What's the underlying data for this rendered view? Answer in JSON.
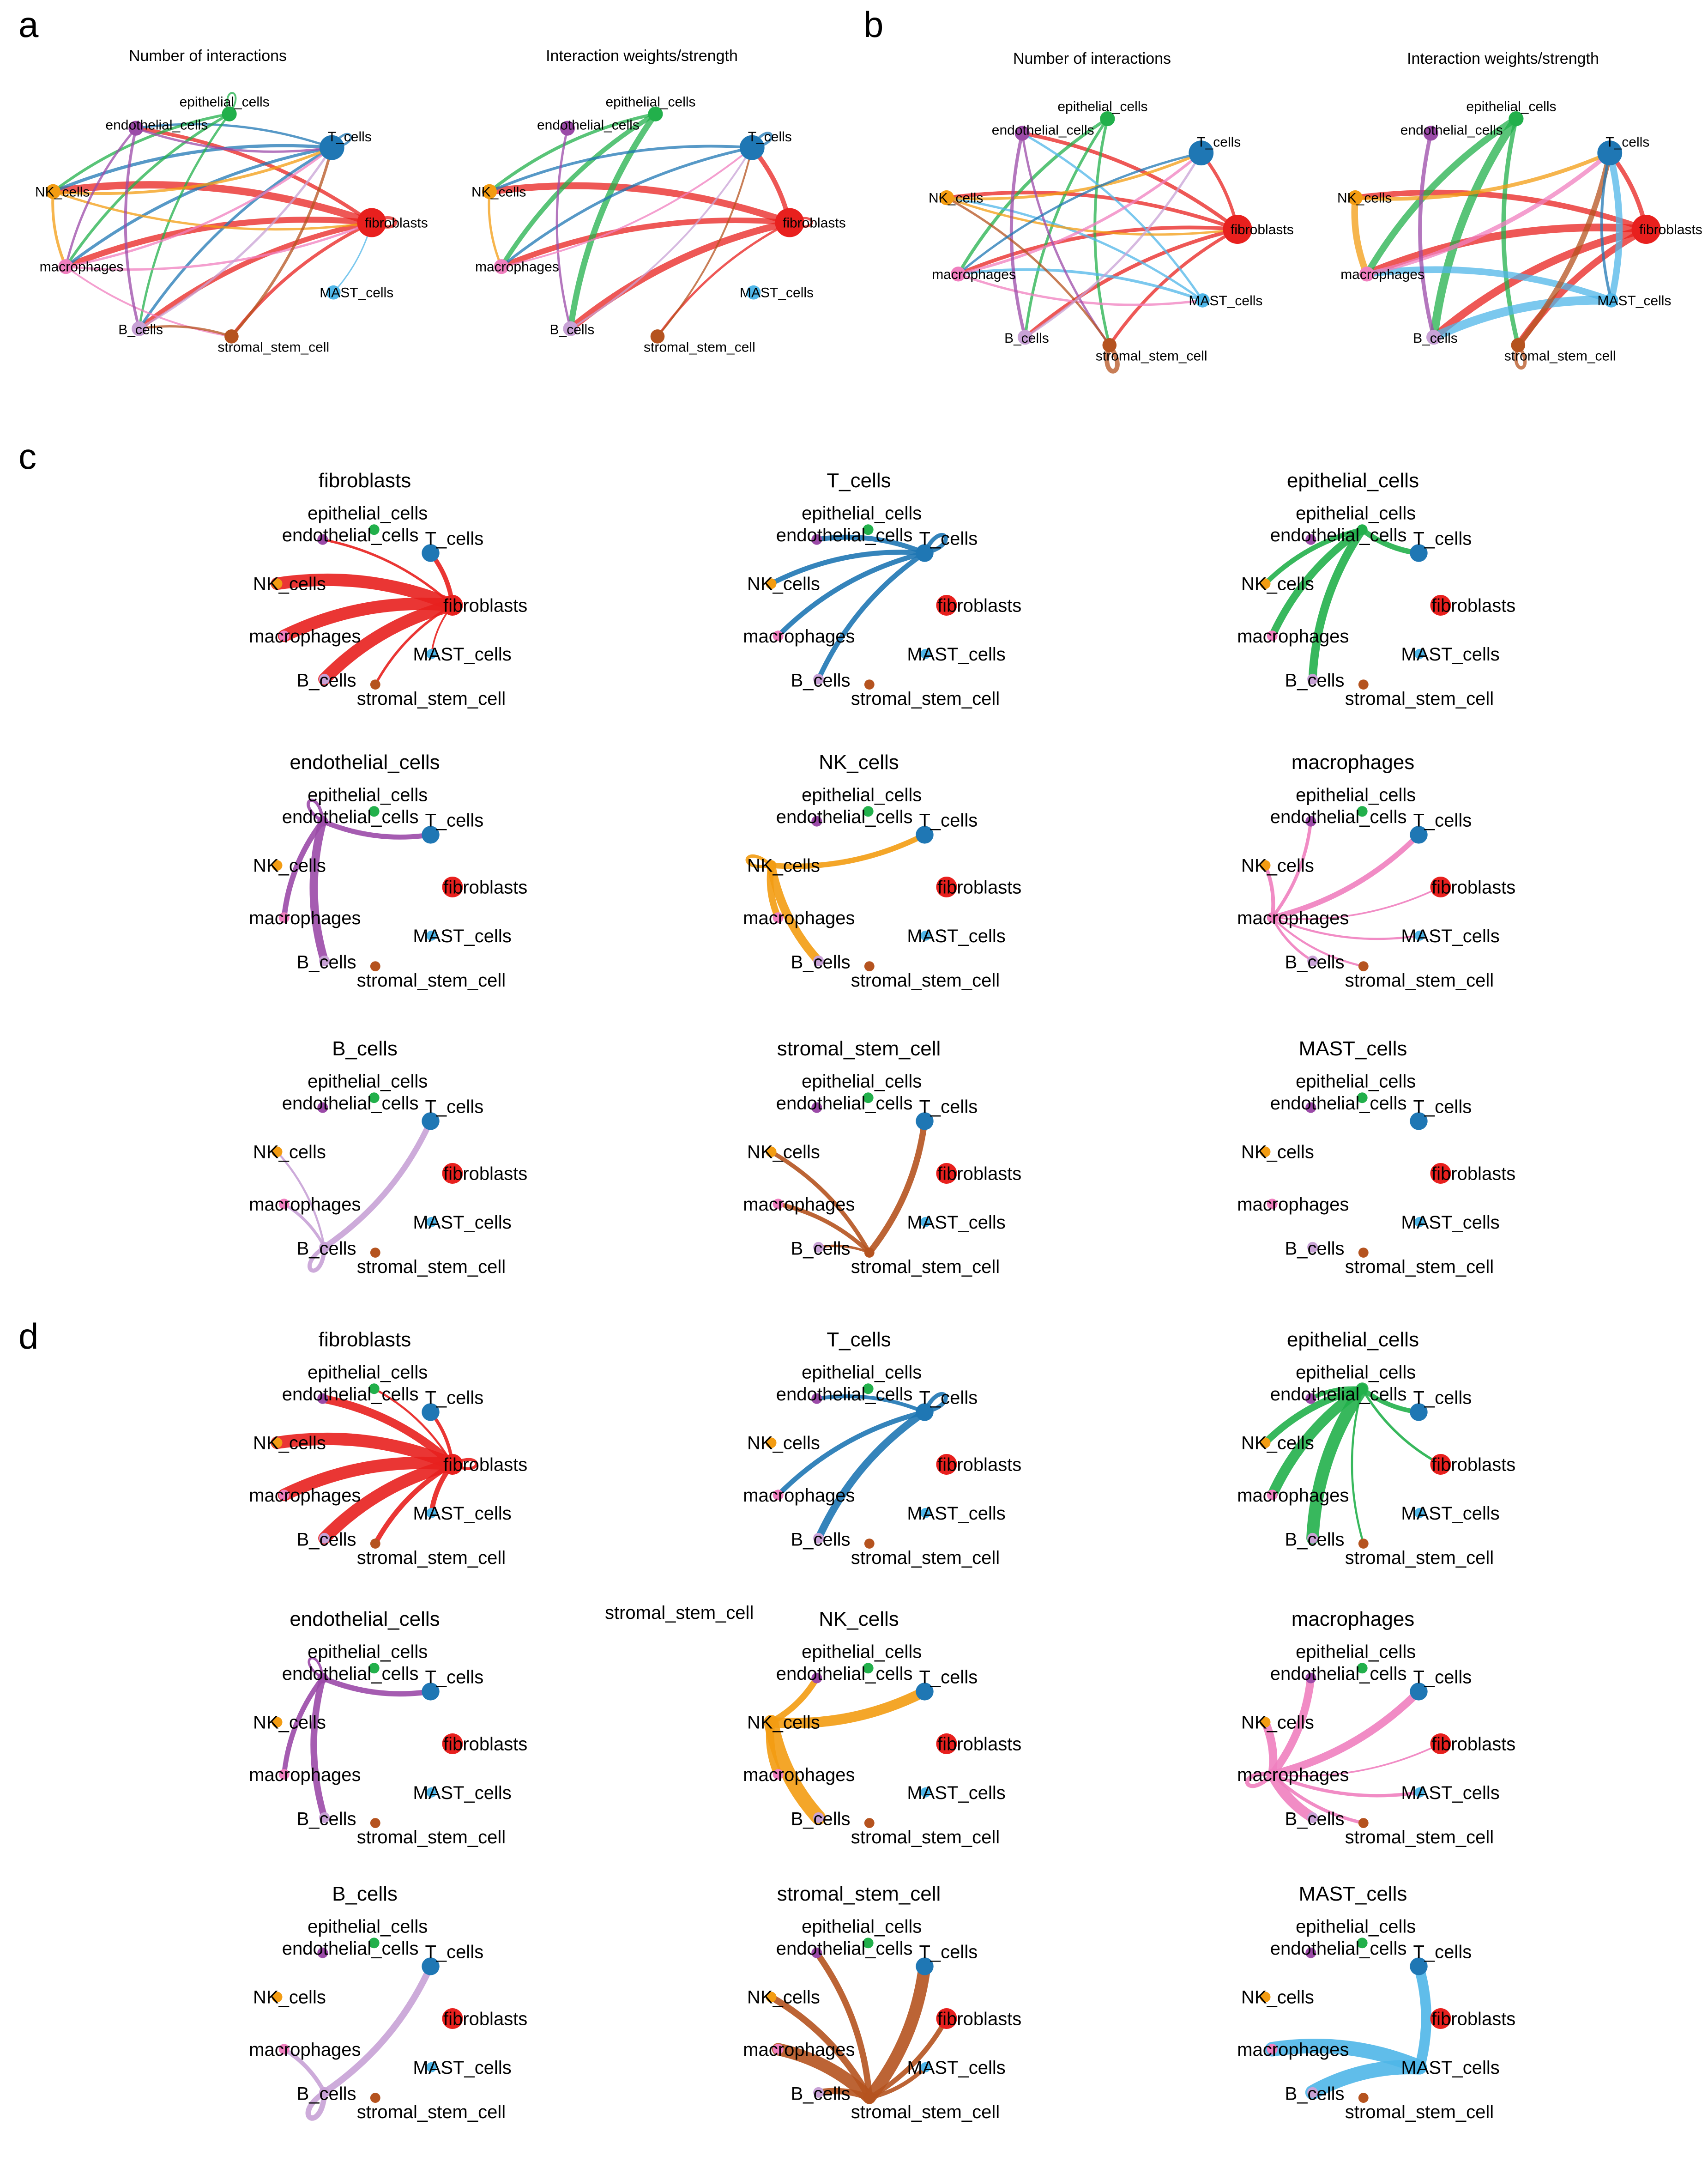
{
  "panels": {
    "a": {
      "letter": "a",
      "titles": [
        "Number of interactions",
        "Interaction weights/strength"
      ]
    },
    "b": {
      "letter": "b",
      "titles": [
        "Number of interactions",
        "Interaction weights/strength"
      ]
    },
    "c": {
      "letter": "c"
    },
    "d": {
      "letter": "d"
    }
  },
  "stray_label": "stromal_stem_cell",
  "chart_data": {
    "type": "network",
    "nodes": [
      {
        "id": "epithelial_cells",
        "label": "epithelial_cells",
        "color": "#22b04b",
        "size": 1.0
      },
      {
        "id": "T_cells",
        "label": "T_cells",
        "color": "#1f77b4",
        "size": 2.4
      },
      {
        "id": "fibroblasts",
        "label": "fibroblasts",
        "color": "#e8201e",
        "size": 3.0
      },
      {
        "id": "MAST_cells",
        "label": "MAST_cells",
        "color": "#4fb6e8",
        "size": 0.9
      },
      {
        "id": "stromal_stem_cell",
        "label": "stromal_stem_cell",
        "color": "#b5531f",
        "size": 0.9
      },
      {
        "id": "B_cells",
        "label": "B_cells",
        "color": "#c8a2d6",
        "size": 1.0
      },
      {
        "id": "macrophages",
        "label": "macrophages",
        "color": "#f07fbf",
        "size": 1.0
      },
      {
        "id": "NK_cells",
        "label": "NK_cells",
        "color": "#f39c12",
        "size": 1.0
      },
      {
        "id": "endothelial_cells",
        "label": "endothelial_cells",
        "color": "#9b4aa8",
        "size": 1.0
      }
    ],
    "overview": {
      "a_count": [
        [
          "fibroblasts",
          "NK_cells",
          3.2
        ],
        [
          "fibroblasts",
          "macrophages",
          2.6
        ],
        [
          "fibroblasts",
          "B_cells",
          2.2
        ],
        [
          "fibroblasts",
          "endothelial_cells",
          1.6
        ],
        [
          "fibroblasts",
          "stromal_stem_cell",
          1.4
        ],
        [
          "fibroblasts",
          "fibroblasts",
          1.4
        ],
        [
          "T_cells",
          "NK_cells",
          1.4
        ],
        [
          "T_cells",
          "macrophages",
          1.3
        ],
        [
          "T_cells",
          "B_cells",
          1.2
        ],
        [
          "T_cells",
          "endothelial_cells",
          1.0
        ],
        [
          "epithelial_cells",
          "NK_cells",
          1.2
        ],
        [
          "epithelial_cells",
          "macrophages",
          1.2
        ],
        [
          "epithelial_cells",
          "B_cells",
          1.0
        ],
        [
          "NK_cells",
          "T_cells",
          1.2
        ],
        [
          "NK_cells",
          "fibroblasts",
          1.0
        ],
        [
          "NK_cells",
          "macrophages",
          1.2
        ],
        [
          "macrophages",
          "T_cells",
          1.0
        ],
        [
          "macrophages",
          "fibroblasts",
          1.0
        ],
        [
          "macrophages",
          "stromal_stem_cell",
          0.8
        ],
        [
          "endothelial_cells",
          "B_cells",
          1.2
        ],
        [
          "endothelial_cells",
          "T_cells",
          1.0
        ],
        [
          "endothelial_cells",
          "macrophages",
          1.0
        ],
        [
          "stromal_stem_cell",
          "T_cells",
          1.2
        ],
        [
          "stromal_stem_cell",
          "B_cells",
          1.0
        ],
        [
          "B_cells",
          "T_cells",
          1.0
        ],
        [
          "MAST_cells",
          "fibroblasts",
          0.6
        ],
        [
          "T_cells",
          "T_cells",
          1.0
        ],
        [
          "epithelial_cells",
          "epithelial_cells",
          0.8
        ]
      ],
      "a_weight": [
        [
          "fibroblasts",
          "NK_cells",
          3.0
        ],
        [
          "fibroblasts",
          "macrophages",
          2.4
        ],
        [
          "fibroblasts",
          "B_cells",
          3.0
        ],
        [
          "fibroblasts",
          "T_cells",
          2.0
        ],
        [
          "fibroblasts",
          "stromal_stem_cell",
          1.0
        ],
        [
          "epithelial_cells",
          "B_cells",
          2.6
        ],
        [
          "epithelial_cells",
          "macrophages",
          2.0
        ],
        [
          "epithelial_cells",
          "NK_cells",
          1.4
        ],
        [
          "T_cells",
          "NK_cells",
          1.2
        ],
        [
          "T_cells",
          "macrophages",
          1.2
        ],
        [
          "NK_cells",
          "macrophages",
          1.0
        ],
        [
          "endothelial_cells",
          "B_cells",
          1.0
        ],
        [
          "macrophages",
          "T_cells",
          0.8
        ],
        [
          "stromal_stem_cell",
          "T_cells",
          0.8
        ],
        [
          "B_cells",
          "T_cells",
          0.8
        ],
        [
          "T_cells",
          "T_cells",
          1.2
        ],
        [
          "fibroblasts",
          "fibroblasts",
          1.0
        ]
      ],
      "b_count": [
        [
          "fibroblasts",
          "NK_cells",
          1.6
        ],
        [
          "fibroblasts",
          "macrophages",
          1.6
        ],
        [
          "fibroblasts",
          "B_cells",
          1.6
        ],
        [
          "fibroblasts",
          "endothelial_cells",
          1.6
        ],
        [
          "fibroblasts",
          "T_cells",
          1.4
        ],
        [
          "fibroblasts",
          "stromal_stem_cell",
          1.4
        ],
        [
          "epithelial_cells",
          "macrophages",
          1.4
        ],
        [
          "epithelial_cells",
          "B_cells",
          1.2
        ],
        [
          "epithelial_cells",
          "stromal_stem_cell",
          1.2
        ],
        [
          "MAST_cells",
          "macrophages",
          1.2
        ],
        [
          "MAST_cells",
          "NK_cells",
          1.0
        ],
        [
          "MAST_cells",
          "endothelial_cells",
          1.0
        ],
        [
          "NK_cells",
          "T_cells",
          1.2
        ],
        [
          "NK_cells",
          "fibroblasts",
          1.0
        ],
        [
          "macrophages",
          "T_cells",
          1.2
        ],
        [
          "macrophages",
          "MAST_cells",
          1.0
        ],
        [
          "endothelial_cells",
          "B_cells",
          1.4
        ],
        [
          "endothelial_cells",
          "stromal_stem_cell",
          1.0
        ],
        [
          "stromal_stem_cell",
          "stromal_stem_cell",
          2.0
        ],
        [
          "stromal_stem_cell",
          "NK_cells",
          1.0
        ],
        [
          "B_cells",
          "T_cells",
          1.0
        ],
        [
          "T_cells",
          "macrophages",
          1.0
        ]
      ],
      "b_weight": [
        [
          "fibroblasts",
          "NK_cells",
          2.0
        ],
        [
          "fibroblasts",
          "macrophages",
          2.8
        ],
        [
          "fibroblasts",
          "B_cells",
          2.8
        ],
        [
          "fibroblasts",
          "T_cells",
          1.6
        ],
        [
          "fibroblasts",
          "stromal_stem_cell",
          2.4
        ],
        [
          "epithelial_cells",
          "B_cells",
          3.0
        ],
        [
          "epithelial_cells",
          "macrophages",
          2.4
        ],
        [
          "epithelial_cells",
          "stromal_stem_cell",
          1.6
        ],
        [
          "MAST_cells",
          "B_cells",
          3.2
        ],
        [
          "MAST_cells",
          "macrophages",
          2.4
        ],
        [
          "MAST_cells",
          "T_cells",
          2.4
        ],
        [
          "NK_cells",
          "macrophages",
          2.4
        ],
        [
          "NK_cells",
          "T_cells",
          1.4
        ],
        [
          "macrophages",
          "T_cells",
          1.6
        ],
        [
          "stromal_stem_cell",
          "T_cells",
          2.0
        ],
        [
          "stromal_stem_cell",
          "stromal_stem_cell",
          1.2
        ],
        [
          "endothelial_cells",
          "B_cells",
          1.4
        ],
        [
          "T_cells",
          "MAST_cells",
          1.0
        ]
      ]
    },
    "c_per_source": [
      {
        "source": "fibroblasts",
        "targets": [
          [
            "NK_cells",
            6
          ],
          [
            "macrophages",
            6
          ],
          [
            "B_cells",
            6
          ],
          [
            "T_cells",
            2.2
          ],
          [
            "endothelial_cells",
            1.2
          ],
          [
            "stromal_stem_cell",
            1.2
          ],
          [
            "MAST_cells",
            0.8
          ]
        ]
      },
      {
        "source": "T_cells",
        "targets": [
          [
            "endothelial_cells",
            2.4
          ],
          [
            "NK_cells",
            2.4
          ],
          [
            "macrophages",
            2.4
          ],
          [
            "B_cells",
            2.4
          ],
          [
            "T_cells",
            2
          ]
        ]
      },
      {
        "source": "epithelial_cells",
        "targets": [
          [
            "B_cells",
            4
          ],
          [
            "macrophages",
            3.6
          ],
          [
            "NK_cells",
            2.4
          ],
          [
            "T_cells",
            2.6
          ]
        ]
      },
      {
        "source": "endothelial_cells",
        "targets": [
          [
            "B_cells",
            4
          ],
          [
            "macrophages",
            2.6
          ],
          [
            "T_cells",
            2.4
          ],
          [
            "endothelial_cells",
            1.5
          ]
        ]
      },
      {
        "source": "NK_cells",
        "targets": [
          [
            "B_cells",
            4.2
          ],
          [
            "macrophages",
            3.2
          ],
          [
            "T_cells",
            2.6
          ],
          [
            "NK_cells",
            1.6
          ]
        ]
      },
      {
        "source": "macrophages",
        "targets": [
          [
            "T_cells",
            2.6
          ],
          [
            "NK_cells",
            1.8
          ],
          [
            "endothelial_cells",
            1.6
          ],
          [
            "fibroblasts",
            0.8
          ],
          [
            "MAST_cells",
            1.0
          ],
          [
            "stromal_stem_cell",
            1.0
          ],
          [
            "B_cells",
            1.2
          ]
        ]
      },
      {
        "source": "B_cells",
        "targets": [
          [
            "T_cells",
            2.8
          ],
          [
            "macrophages",
            1.4
          ],
          [
            "NK_cells",
            1.0
          ],
          [
            "B_cells",
            2.0
          ]
        ]
      },
      {
        "source": "stromal_stem_cell",
        "targets": [
          [
            "T_cells",
            3.0
          ],
          [
            "macrophages",
            2.0
          ],
          [
            "NK_cells",
            2.0
          ],
          [
            "B_cells",
            1.2
          ]
        ]
      },
      {
        "source": "MAST_cells",
        "targets": []
      }
    ],
    "d_per_source": [
      {
        "source": "fibroblasts",
        "targets": [
          [
            "NK_cells",
            6
          ],
          [
            "macrophages",
            6
          ],
          [
            "B_cells",
            6
          ],
          [
            "endothelial_cells",
            4.0
          ],
          [
            "MAST_cells",
            2.4
          ],
          [
            "stromal_stem_cell",
            2.4
          ],
          [
            "T_cells",
            1.6
          ],
          [
            "epithelial_cells",
            1.0
          ],
          [
            "fibroblasts",
            1.4
          ]
        ]
      },
      {
        "source": "T_cells",
        "targets": [
          [
            "B_cells",
            3.6
          ],
          [
            "macrophages",
            2.4
          ],
          [
            "endothelial_cells",
            1.8
          ],
          [
            "T_cells",
            2.0
          ]
        ]
      },
      {
        "source": "epithelial_cells",
        "targets": [
          [
            "B_cells",
            6
          ],
          [
            "macrophages",
            5
          ],
          [
            "NK_cells",
            3.4
          ],
          [
            "endothelial_cells",
            2.0
          ],
          [
            "T_cells",
            2.2
          ],
          [
            "fibroblasts",
            1.2
          ],
          [
            "stromal_stem_cell",
            1.0
          ]
        ]
      },
      {
        "source": "endothelial_cells",
        "targets": [
          [
            "B_cells",
            3.2
          ],
          [
            "macrophages",
            2.4
          ],
          [
            "T_cells",
            2.6
          ],
          [
            "endothelial_cells",
            1.2
          ]
        ]
      },
      {
        "source": "NK_cells",
        "targets": [
          [
            "B_cells",
            7
          ],
          [
            "macrophages",
            4
          ],
          [
            "T_cells",
            5
          ],
          [
            "endothelial_cells",
            3.0
          ]
        ]
      },
      {
        "source": "macrophages",
        "targets": [
          [
            "B_cells",
            5
          ],
          [
            "T_cells",
            3.8
          ],
          [
            "NK_cells",
            4.0
          ],
          [
            "endothelial_cells",
            3.8
          ],
          [
            "MAST_cells",
            1.6
          ],
          [
            "fibroblasts",
            0.8
          ],
          [
            "stromal_stem_cell",
            1.6
          ],
          [
            "macrophages",
            2.0
          ]
        ]
      },
      {
        "source": "B_cells",
        "targets": [
          [
            "T_cells",
            3.2
          ],
          [
            "macrophages",
            2.0
          ],
          [
            "B_cells",
            2.6
          ]
        ]
      },
      {
        "source": "stromal_stem_cell",
        "targets": [
          [
            "T_cells",
            6
          ],
          [
            "macrophages",
            6
          ],
          [
            "NK_cells",
            3.2
          ],
          [
            "endothelial_cells",
            3.0
          ],
          [
            "B_cells",
            3.0
          ],
          [
            "fibroblasts",
            2.4
          ],
          [
            "MAST_cells",
            2.0
          ]
        ]
      },
      {
        "source": "MAST_cells",
        "targets": [
          [
            "B_cells",
            7
          ],
          [
            "macrophages",
            7
          ],
          [
            "T_cells",
            5
          ]
        ]
      }
    ]
  }
}
